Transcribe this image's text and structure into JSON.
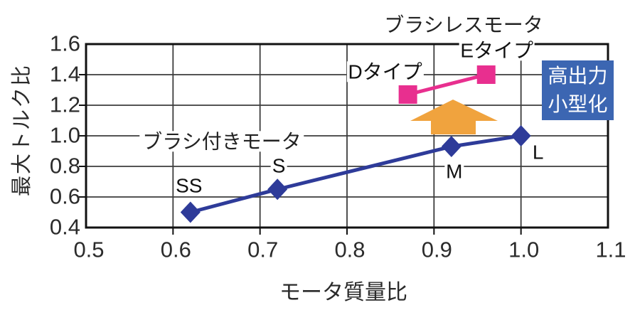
{
  "chart_data": {
    "type": "line",
    "title": "",
    "xlabel": "モータ質量比",
    "ylabel": "最大トルク比",
    "xlim": [
      0.5,
      1.1
    ],
    "ylim": [
      0.4,
      1.6
    ],
    "x_ticks": [
      0.5,
      0.6,
      0.7,
      0.8,
      0.9,
      1.0,
      1.1
    ],
    "y_ticks": [
      0.4,
      0.6,
      0.8,
      1.0,
      1.2,
      1.4,
      1.6
    ],
    "grid": true,
    "legend_position": "inline-labels",
    "colors": {
      "grid": "#3c3c3c",
      "border": "#111111",
      "tick_text": "#2b2b2b"
    },
    "series": [
      {
        "name": "ブラシ付きモータ",
        "color": "#2e3b99",
        "marker": "diamond",
        "points": [
          {
            "x": 0.62,
            "y": 0.5,
            "label": "SS"
          },
          {
            "x": 0.72,
            "y": 0.65,
            "label": "S"
          },
          {
            "x": 0.92,
            "y": 0.93,
            "label": "M"
          },
          {
            "x": 1.0,
            "y": 1.0,
            "label": "L"
          }
        ]
      },
      {
        "name": "ブラシレスモータ",
        "color": "#e82f8f",
        "marker": "square",
        "points": [
          {
            "x": 0.87,
            "y": 1.27,
            "label": "Dタイプ"
          },
          {
            "x": 0.96,
            "y": 1.4,
            "label": "Eタイプ"
          }
        ]
      }
    ],
    "annotations": {
      "improvement_arrow": {
        "shape": "block-arrow-up",
        "color": "#f0a33e"
      },
      "callout": {
        "lines": [
          "高出力",
          "小型化"
        ],
        "bg_color": "#3c66b2",
        "text_color": "#ffffff"
      }
    }
  }
}
